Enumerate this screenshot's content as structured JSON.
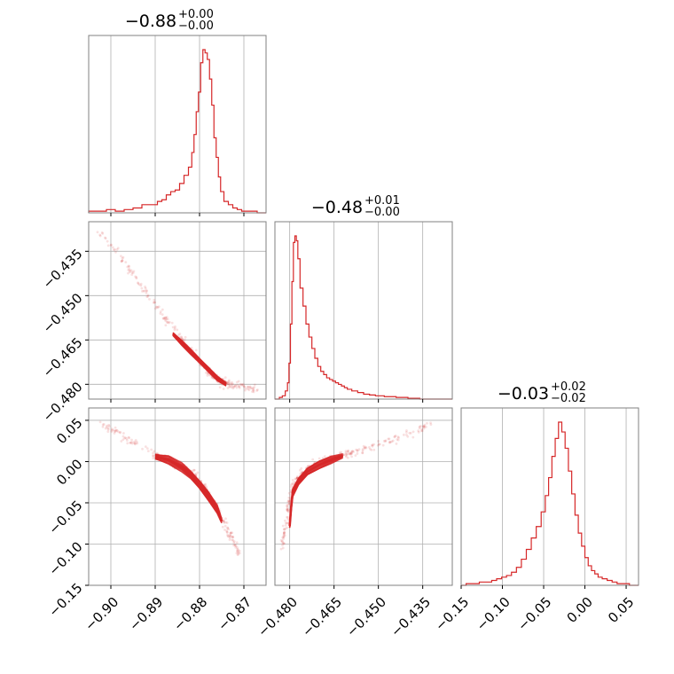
{
  "chart_data": {
    "type": "corner",
    "color": "#d62728",
    "grid": true,
    "parameters": [
      {
        "median": "−0.88",
        "plus": "+0.00",
        "minus": "−0.00",
        "range": [
          -0.905,
          -0.865
        ],
        "ticks": [
          -0.9,
          -0.89,
          -0.88,
          -0.87
        ],
        "tick_labels": [
          "−0.90",
          "−0.89",
          "−0.88",
          "−0.87"
        ],
        "hist": {
          "x": [
            -0.904,
            -0.902,
            -0.9,
            -0.898,
            -0.896,
            -0.894,
            -0.892,
            -0.89,
            -0.889,
            -0.888,
            -0.887,
            -0.886,
            -0.885,
            -0.884,
            -0.883,
            -0.882,
            -0.8815,
            -0.881,
            -0.8805,
            -0.88,
            -0.8795,
            -0.879,
            -0.8785,
            -0.878,
            -0.8775,
            -0.877,
            -0.8765,
            -0.876,
            -0.8755,
            -0.875,
            -0.874,
            -0.873,
            -0.872,
            -0.871,
            -0.87,
            -0.869,
            -0.868,
            -0.866
          ],
          "y": [
            0.01,
            0.01,
            0.02,
            0.01,
            0.02,
            0.03,
            0.05,
            0.05,
            0.07,
            0.08,
            0.11,
            0.13,
            0.14,
            0.18,
            0.23,
            0.28,
            0.37,
            0.48,
            0.62,
            0.74,
            0.92,
            1.0,
            0.98,
            0.94,
            0.82,
            0.66,
            0.46,
            0.34,
            0.22,
            0.13,
            0.07,
            0.05,
            0.03,
            0.02,
            0.01,
            0.01,
            0.01,
            0.0
          ]
        }
      },
      {
        "median": "−0.48",
        "plus": "+0.01",
        "minus": "−0.00",
        "range": [
          -0.485,
          -0.425
        ],
        "ticks": [
          -0.48,
          -0.465,
          -0.45,
          -0.435
        ],
        "tick_labels": [
          "−0.480",
          "−0.465",
          "−0.450",
          "−0.435"
        ],
        "hist": {
          "x": [
            -0.484,
            -0.483,
            -0.482,
            -0.481,
            -0.4805,
            -0.48,
            -0.4795,
            -0.479,
            -0.4785,
            -0.478,
            -0.4775,
            -0.477,
            -0.476,
            -0.475,
            -0.474,
            -0.473,
            -0.472,
            -0.471,
            -0.47,
            -0.469,
            -0.468,
            -0.467,
            -0.466,
            -0.465,
            -0.464,
            -0.463,
            -0.462,
            -0.461,
            -0.46,
            -0.458,
            -0.456,
            -0.454,
            -0.452,
            -0.45,
            -0.446,
            -0.442,
            -0.438,
            -0.434
          ],
          "y": [
            0.0,
            0.01,
            0.02,
            0.05,
            0.1,
            0.22,
            0.46,
            0.72,
            0.96,
            1.0,
            0.97,
            0.86,
            0.68,
            0.57,
            0.46,
            0.38,
            0.31,
            0.25,
            0.2,
            0.17,
            0.15,
            0.13,
            0.12,
            0.11,
            0.1,
            0.09,
            0.08,
            0.07,
            0.06,
            0.05,
            0.04,
            0.03,
            0.025,
            0.02,
            0.015,
            0.01,
            0.005,
            0.0
          ]
        }
      },
      {
        "median": "−0.03",
        "plus": "+0.02",
        "minus": "−0.02",
        "range": [
          -0.15,
          0.065
        ],
        "ticks": [
          -0.15,
          -0.1,
          -0.05,
          0.0,
          0.05
        ],
        "tick_labels": [
          "−0.15",
          "−0.10",
          "−0.05",
          "0.00",
          "0.05"
        ],
        "hist": {
          "x": [
            -0.148,
            -0.14,
            -0.132,
            -0.124,
            -0.116,
            -0.11,
            -0.104,
            -0.098,
            -0.092,
            -0.086,
            -0.08,
            -0.074,
            -0.068,
            -0.062,
            -0.056,
            -0.05,
            -0.046,
            -0.042,
            -0.038,
            -0.034,
            -0.03,
            -0.026,
            -0.022,
            -0.018,
            -0.014,
            -0.01,
            -0.006,
            -0.002,
            0.002,
            0.006,
            0.01,
            0.014,
            0.018,
            0.024,
            0.03,
            0.036,
            0.042,
            0.05,
            0.058
          ],
          "y": [
            0.0,
            0.01,
            0.01,
            0.02,
            0.02,
            0.03,
            0.04,
            0.05,
            0.06,
            0.08,
            0.11,
            0.16,
            0.22,
            0.29,
            0.36,
            0.45,
            0.55,
            0.66,
            0.79,
            0.9,
            1.0,
            0.94,
            0.84,
            0.7,
            0.56,
            0.43,
            0.32,
            0.24,
            0.17,
            0.12,
            0.09,
            0.07,
            0.05,
            0.04,
            0.03,
            0.02,
            0.01,
            0.01,
            0.0
          ]
        }
      }
    ],
    "pairs": [
      {
        "row": 1,
        "col": 0,
        "curve": [
          [
            -0.903,
            -0.428
          ],
          [
            -0.898,
            -0.437
          ],
          [
            -0.894,
            -0.445
          ],
          [
            -0.89,
            -0.453
          ],
          [
            -0.887,
            -0.459
          ],
          [
            -0.884,
            -0.465
          ],
          [
            -0.881,
            -0.47
          ],
          [
            -0.879,
            -0.474
          ],
          [
            -0.877,
            -0.477
          ],
          [
            -0.875,
            -0.479
          ],
          [
            -0.873,
            -0.48
          ],
          [
            -0.87,
            -0.481
          ],
          [
            -0.867,
            -0.482
          ]
        ],
        "contour_curve": [
          [
            -0.886,
            -0.463
          ],
          [
            -0.884,
            -0.466
          ],
          [
            -0.882,
            -0.469
          ],
          [
            -0.88,
            -0.472
          ],
          [
            -0.878,
            -0.475
          ],
          [
            -0.876,
            -0.478
          ],
          [
            -0.874,
            -0.48
          ]
        ],
        "contour_width": [
          0.0028,
          0.0026,
          0.0022,
          0.0018
        ]
      },
      {
        "row": 2,
        "col": 0,
        "curve": [
          [
            -0.902,
            0.045
          ],
          [
            -0.898,
            0.032
          ],
          [
            -0.894,
            0.02
          ],
          [
            -0.89,
            0.008
          ],
          [
            -0.887,
            0.002
          ],
          [
            -0.884,
            -0.006
          ],
          [
            -0.881,
            -0.016
          ],
          [
            -0.879,
            -0.03
          ],
          [
            -0.877,
            -0.048
          ],
          [
            -0.875,
            -0.068
          ],
          [
            -0.873,
            -0.09
          ],
          [
            -0.871,
            -0.112
          ]
        ],
        "contour_curve": [
          [
            -0.89,
            0.006
          ],
          [
            -0.887,
            0.002
          ],
          [
            -0.884,
            -0.007
          ],
          [
            -0.882,
            -0.016
          ],
          [
            -0.88,
            -0.028
          ],
          [
            -0.878,
            -0.042
          ],
          [
            -0.876,
            -0.058
          ],
          [
            -0.875,
            -0.072
          ]
        ],
        "contour_width": [
          0.018,
          0.015,
          0.011,
          0.007
        ]
      },
      {
        "row": 2,
        "col": 1,
        "curve": [
          [
            -0.4825,
            -0.1
          ],
          [
            -0.4815,
            -0.08
          ],
          [
            -0.4805,
            -0.06
          ],
          [
            -0.4795,
            -0.04
          ],
          [
            -0.478,
            -0.024
          ],
          [
            -0.476,
            -0.014
          ],
          [
            -0.473,
            -0.006
          ],
          [
            -0.47,
            0.0
          ],
          [
            -0.466,
            0.004
          ],
          [
            -0.462,
            0.008
          ],
          [
            -0.456,
            0.013
          ],
          [
            -0.45,
            0.02
          ],
          [
            -0.444,
            0.028
          ],
          [
            -0.438,
            0.036
          ],
          [
            -0.432,
            0.048
          ]
        ],
        "contour_curve": [
          [
            -0.48,
            -0.078
          ],
          [
            -0.4795,
            -0.055
          ],
          [
            -0.479,
            -0.038
          ],
          [
            -0.477,
            -0.024
          ],
          [
            -0.474,
            -0.012
          ],
          [
            -0.47,
            -0.004
          ],
          [
            -0.466,
            0.002
          ],
          [
            -0.462,
            0.007
          ]
        ],
        "contour_width": [
          0.016,
          0.013,
          0.01,
          0.006
        ]
      }
    ]
  }
}
